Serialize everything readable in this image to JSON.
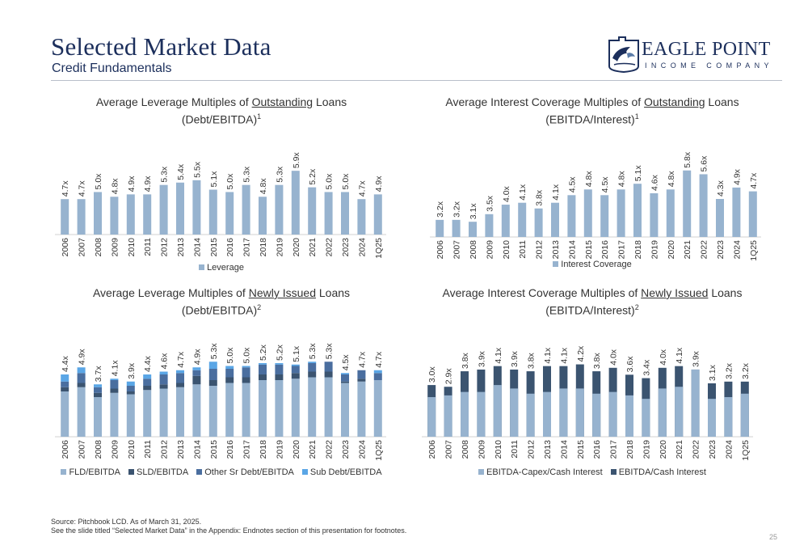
{
  "header": {
    "title": "Selected Market Data",
    "subtitle": "Credit Fundamentals"
  },
  "logo": {
    "name": "EAGLE POINT",
    "sub": "INCOME COMPANY"
  },
  "colors": {
    "light": "#97b3cf",
    "dark": "#3b5470",
    "mid": "#4a6e9f",
    "sub": "#5aa6e6",
    "navy": "#1c2f5c"
  },
  "charts": {
    "lev_out": {
      "title_pre": "Average Leverage Multiples of ",
      "title_u": "Outstanding",
      "title_post": " Loans",
      "title_line2": "(Debt/EBITDA)",
      "title_sup": "1"
    },
    "cov_out": {
      "title_pre": "Average Interest Coverage Multiples of ",
      "title_u": "Outstanding",
      "title_post": " Loans",
      "title_line2": "(EBITDA/Interest)",
      "title_sup": "1"
    },
    "lev_new": {
      "title_pre": "Average Leverage Multiples of ",
      "title_u": "Newly Issued",
      "title_post": " Loans",
      "title_line2": "(Debt/EBITDA)",
      "title_sup": "2"
    },
    "cov_new": {
      "title_pre": "Average Interest Coverage Multiples of ",
      "title_u": "Newly Issued",
      "title_post": " Loans",
      "title_line2": "(EBITDA/Interest)",
      "title_sup": "2"
    }
  },
  "chart_data": [
    {
      "id": "lev_out",
      "type": "bar",
      "categories": [
        "2006",
        "2007",
        "2008",
        "2009",
        "2010",
        "2011",
        "2012",
        "2013",
        "2014",
        "2015",
        "2016",
        "2017",
        "2018",
        "2019",
        "2020",
        "2021",
        "2022",
        "2023",
        "2024",
        "1Q25"
      ],
      "series": [
        {
          "name": "Leverage",
          "values": [
            4.7,
            4.7,
            5.0,
            4.8,
            4.9,
            4.9,
            5.3,
            5.4,
            5.5,
            5.1,
            5.0,
            5.3,
            4.8,
            5.3,
            5.9,
            5.2,
            5.0,
            5.0,
            4.7,
            4.9
          ]
        }
      ],
      "data_labels": [
        "4.7x",
        "4.7x",
        "5.0x",
        "4.8x",
        "4.9x",
        "4.9x",
        "5.3x",
        "5.4x",
        "5.5x",
        "5.1x",
        "5.0x",
        "5.3x",
        "4.8x",
        "5.3x",
        "5.9x",
        "5.2x",
        "5.0x",
        "5.0x",
        "4.7x",
        "4.9x"
      ],
      "ylim": [
        3.2,
        6.8
      ],
      "legend": [
        "Leverage"
      ],
      "legend_position": "bottom"
    },
    {
      "id": "cov_out",
      "type": "bar",
      "categories": [
        "2006",
        "2007",
        "2008",
        "2009",
        "2010",
        "2011",
        "2012",
        "2013",
        "2014",
        "2015",
        "2016",
        "2017",
        "2018",
        "2019",
        "2020",
        "2021",
        "2022",
        "2023",
        "2024",
        "1Q25"
      ],
      "series": [
        {
          "name": "Interest Coverage",
          "values": [
            3.2,
            3.2,
            3.1,
            3.5,
            4.0,
            4.1,
            3.8,
            4.1,
            4.5,
            4.8,
            4.5,
            4.8,
            5.1,
            4.6,
            4.8,
            5.8,
            5.6,
            4.3,
            4.9,
            4.7
          ]
        }
      ],
      "data_labels": [
        "3.2x",
        "3.2x",
        "3.1x",
        "3.5x",
        "4.0x",
        "4.1x",
        "3.8x",
        "4.1x",
        "4.5x",
        "4.8x",
        "4.5x",
        "4.8x",
        "5.1x",
        "4.6x",
        "4.8x",
        "5.8x",
        "5.6x",
        "4.3x",
        "4.9x",
        "4.7x"
      ],
      "ylim": [
        2.3,
        6.4
      ],
      "legend": [
        "Interest Coverage"
      ],
      "legend_position": "bottom"
    },
    {
      "id": "lev_new",
      "type": "bar",
      "stacked": true,
      "categories": [
        "2006",
        "2007",
        "2008",
        "2009",
        "2010",
        "2011",
        "2012",
        "2013",
        "2014",
        "2015",
        "2016",
        "2017",
        "2018",
        "2019",
        "2020",
        "2021",
        "2022",
        "2023",
        "2024",
        "1Q25"
      ],
      "series": [
        {
          "name": "FLD/EBITDA",
          "values": [
            3.2,
            3.5,
            2.8,
            3.1,
            3.0,
            3.3,
            3.4,
            3.5,
            3.7,
            3.6,
            3.8,
            3.8,
            4.0,
            4.0,
            4.1,
            4.2,
            4.2,
            3.8,
            3.9,
            4.0
          ]
        },
        {
          "name": "SLD/EBITDA",
          "values": [
            0.3,
            0.3,
            0.3,
            0.3,
            0.2,
            0.3,
            0.3,
            0.3,
            0.6,
            0.4,
            0.4,
            0.4,
            0.4,
            0.4,
            0.4,
            0.4,
            0.4,
            0.1,
            0.2,
            0.0
          ]
        },
        {
          "name": "Other Sr Debt/EBITDA",
          "values": [
            0.4,
            0.7,
            0.4,
            0.6,
            0.4,
            0.5,
            0.7,
            0.7,
            0.4,
            0.8,
            0.6,
            0.7,
            0.7,
            0.7,
            0.5,
            0.6,
            0.7,
            0.5,
            0.6,
            0.5
          ]
        },
        {
          "name": "Sub Debt/EBITDA",
          "values": [
            0.5,
            0.4,
            0.2,
            0.1,
            0.3,
            0.3,
            0.2,
            0.2,
            0.2,
            0.5,
            0.2,
            0.1,
            0.1,
            0.1,
            0.1,
            0.1,
            0.0,
            0.1,
            0.0,
            0.2
          ]
        }
      ],
      "data_labels": [
        "4.4x",
        "4.9x",
        "3.7x",
        "4.1x",
        "3.9x",
        "4.4x",
        "4.6x",
        "4.7x",
        "4.9x",
        "5.3x",
        "5.0x",
        "5.0x",
        "5.2x",
        "5.2x",
        "5.1x",
        "5.3x",
        "5.3x",
        "4.5x",
        "4.7x",
        "4.7x"
      ],
      "ylim": [
        0,
        6.3
      ],
      "legend": [
        "FLD/EBITDA",
        "SLD/EBITDA",
        "Other Sr Debt/EBITDA",
        "Sub Debt/EBITDA"
      ],
      "legend_position": "bottom"
    },
    {
      "id": "cov_new",
      "type": "bar",
      "overlapping": true,
      "categories": [
        "2006",
        "2007",
        "2008",
        "2009",
        "2010",
        "2011",
        "2012",
        "2013",
        "2014",
        "2015",
        "2016",
        "2017",
        "2018",
        "2019",
        "2020",
        "2021",
        "2022",
        "2023",
        "2024",
        "1Q25"
      ],
      "series": [
        {
          "name": "EBITDA-Capex/Cash Interest",
          "values": [
            2.3,
            2.4,
            2.6,
            2.6,
            3.0,
            2.8,
            2.5,
            2.6,
            2.8,
            2.8,
            2.5,
            2.6,
            2.4,
            2.2,
            2.8,
            2.9,
            3.9,
            2.2,
            2.3,
            2.5
          ]
        },
        {
          "name": "EBITDA/Cash Interest",
          "values": [
            3.0,
            2.9,
            3.8,
            3.9,
            4.1,
            3.9,
            3.8,
            4.1,
            4.1,
            4.2,
            3.8,
            4.0,
            3.6,
            3.4,
            4.0,
            4.1,
            3.9,
            3.1,
            3.2,
            3.2
          ]
        }
      ],
      "data_labels": [
        "3.0x",
        "2.9x",
        "3.8x",
        "3.9x",
        "4.1x",
        "3.9x",
        "3.8x",
        "4.1x",
        "4.1x",
        "4.2x",
        "3.8x",
        "4.0x",
        "3.6x",
        "3.4x",
        "4.0x",
        "4.1x",
        "3.9x",
        "3.1x",
        "3.2x",
        "3.2x"
      ],
      "ylim": [
        0,
        5.3
      ],
      "legend": [
        "EBITDA-Capex/Cash Interest",
        "EBITDA/Cash Interest"
      ],
      "legend_position": "bottom"
    }
  ],
  "footer": {
    "source": "Source: Pitchbook LCD. As of March 31, 2025.",
    "note": "See the slide titled “Selected Market Data” in the Appendix: Endnotes section of this presentation for footnotes.",
    "page": "25"
  }
}
